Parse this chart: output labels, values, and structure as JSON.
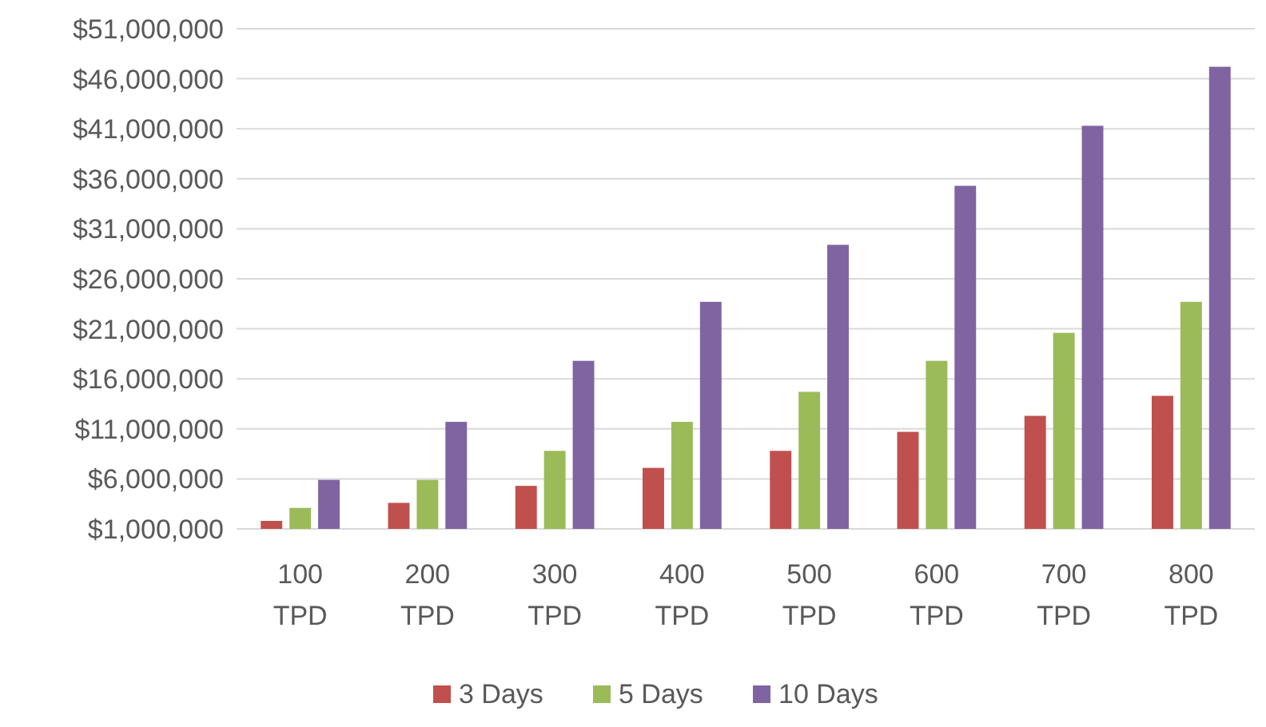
{
  "chart_data": {
    "type": "bar",
    "categories": [
      "100 TPD",
      "200 TPD",
      "300 TPD",
      "400 TPD",
      "500 TPD",
      "600 TPD",
      "700 TPD",
      "800 TPD"
    ],
    "series": [
      {
        "name": "3 Days",
        "color": "#c0504d",
        "values": [
          1800000,
          3600000,
          5300000,
          7100000,
          8800000,
          10700000,
          12300000,
          14300000
        ]
      },
      {
        "name": "5 Days",
        "color": "#9bbb59",
        "values": [
          3100000,
          5900000,
          8800000,
          11700000,
          14700000,
          17800000,
          20600000,
          23700000
        ]
      },
      {
        "name": "10 Days",
        "color": "#8064a2",
        "values": [
          5900000,
          11700000,
          17800000,
          23700000,
          29400000,
          35300000,
          41300000,
          47200000
        ]
      }
    ],
    "ylim": [
      1000000,
      51000000
    ],
    "yticks": [
      {
        "value": 1000000,
        "label": "$1,000,000"
      },
      {
        "value": 6000000,
        "label": "$6,000,000"
      },
      {
        "value": 11000000,
        "label": "$11,000,000"
      },
      {
        "value": 16000000,
        "label": "$16,000,000"
      },
      {
        "value": 21000000,
        "label": "$21,000,000"
      },
      {
        "value": 26000000,
        "label": "$26,000,000"
      },
      {
        "value": 31000000,
        "label": "$31,000,000"
      },
      {
        "value": 36000000,
        "label": "$36,000,000"
      },
      {
        "value": 41000000,
        "label": "$41,000,000"
      },
      {
        "value": 46000000,
        "label": "$46,000,000"
      },
      {
        "value": 51000000,
        "label": "$51,000,000"
      }
    ],
    "grid": "y",
    "legend": "bottom"
  }
}
